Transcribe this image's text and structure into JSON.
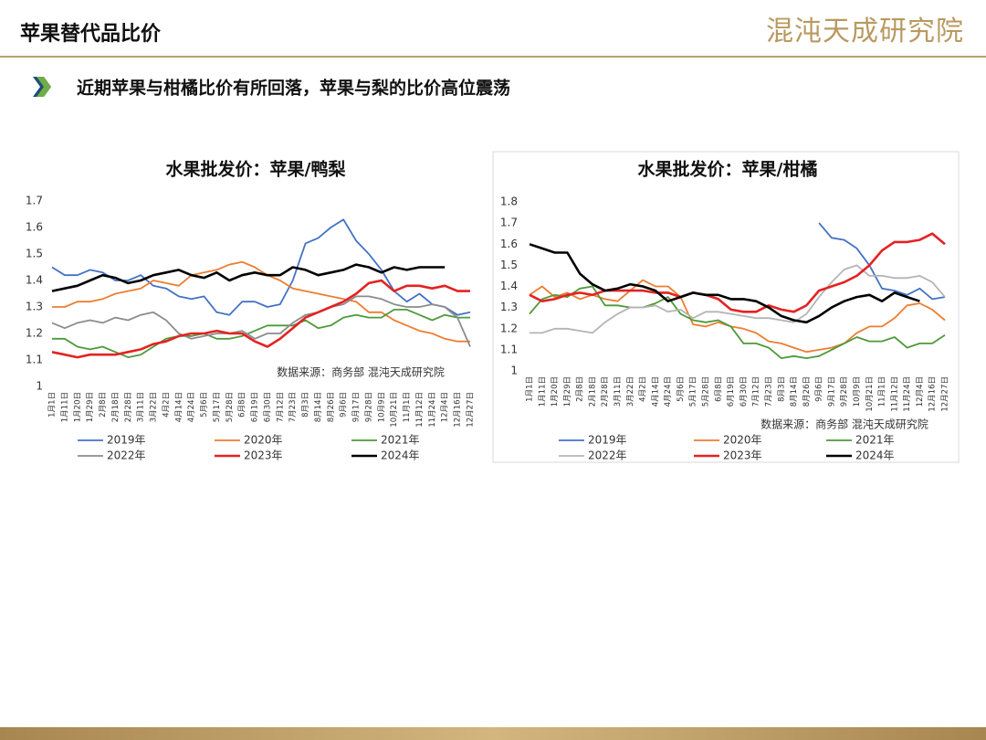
{
  "header": {
    "title": "苹果替代品比价",
    "logo": "混沌天成研究院",
    "subtitle": "近期苹果与柑橘比价有所回落，苹果与梨的比价高位震荡"
  },
  "chart_data": [
    {
      "type": "line",
      "title": "水果批发价：苹果/鸭梨",
      "source": "数据来源：商务部  混沌天成研究院",
      "categories": [
        "1月1日",
        "1月11日",
        "1月20日",
        "1月29日",
        "2月8日",
        "2月18日",
        "2月28日",
        "3月11日",
        "3月22日",
        "4月2日",
        "4月14日",
        "4月24日",
        "5月6日",
        "5月17日",
        "5月28日",
        "6月8日",
        "6月19日",
        "6月30日",
        "7月12日",
        "7月23日",
        "8月3日",
        "8月14日",
        "8月26日",
        "9月6日",
        "9月17日",
        "9月28日",
        "10月9日",
        "10月21日",
        "11月1日",
        "11月12日",
        "11月24日",
        "12月4日",
        "12月16日",
        "12月27日"
      ],
      "ylim": [
        1,
        1.7
      ],
      "yticks": [
        1,
        1.1,
        1.2,
        1.3,
        1.4,
        1.5,
        1.6,
        1.7
      ],
      "series": [
        {
          "name": "2019年",
          "color": "#4472c4",
          "values": [
            1.45,
            1.42,
            1.42,
            1.44,
            1.43,
            1.4,
            1.4,
            1.42,
            1.38,
            1.37,
            1.34,
            1.33,
            1.34,
            1.28,
            1.27,
            1.32,
            1.32,
            1.3,
            1.31,
            1.4,
            1.54,
            1.56,
            1.6,
            1.63,
            1.55,
            1.5,
            1.44,
            1.36,
            1.32,
            1.35,
            1.31,
            1.3,
            1.27,
            1.28
          ]
        },
        {
          "name": "2020年",
          "color": "#ed7d31",
          "values": [
            1.3,
            1.3,
            1.32,
            1.32,
            1.33,
            1.35,
            1.36,
            1.37,
            1.4,
            1.39,
            1.38,
            1.42,
            1.43,
            1.44,
            1.46,
            1.47,
            1.45,
            1.42,
            1.4,
            1.37,
            1.36,
            1.35,
            1.34,
            1.33,
            1.32,
            1.28,
            1.28,
            1.25,
            1.23,
            1.21,
            1.2,
            1.18,
            1.17,
            1.17
          ]
        },
        {
          "name": "2021年",
          "color": "#4e9a3a",
          "values": [
            1.18,
            1.18,
            1.15,
            1.14,
            1.15,
            1.13,
            1.11,
            1.12,
            1.15,
            1.18,
            1.19,
            1.19,
            1.2,
            1.18,
            1.18,
            1.19,
            1.21,
            1.23,
            1.23,
            1.23,
            1.25,
            1.22,
            1.23,
            1.26,
            1.27,
            1.26,
            1.26,
            1.29,
            1.29,
            1.27,
            1.25,
            1.27,
            1.26,
            1.26
          ]
        },
        {
          "name": "2022年",
          "color": "#8c8c8c",
          "values": [
            1.24,
            1.22,
            1.24,
            1.25,
            1.24,
            1.26,
            1.25,
            1.27,
            1.28,
            1.25,
            1.2,
            1.18,
            1.19,
            1.2,
            1.2,
            1.21,
            1.18,
            1.2,
            1.2,
            1.24,
            1.27,
            1.28,
            1.3,
            1.31,
            1.34,
            1.34,
            1.33,
            1.31,
            1.3,
            1.3,
            1.31,
            1.3,
            1.26,
            1.15
          ]
        },
        {
          "name": "2023年",
          "color": "#e42222",
          "values": [
            1.13,
            1.12,
            1.11,
            1.12,
            1.12,
            1.12,
            1.13,
            1.14,
            1.16,
            1.17,
            1.19,
            1.2,
            1.2,
            1.21,
            1.2,
            1.2,
            1.17,
            1.15,
            1.18,
            1.22,
            1.26,
            1.28,
            1.3,
            1.32,
            1.35,
            1.39,
            1.4,
            1.36,
            1.38,
            1.38,
            1.37,
            1.38,
            1.36,
            1.36
          ]
        },
        {
          "name": "2024年",
          "color": "#000000",
          "values": [
            1.36,
            1.37,
            1.38,
            1.4,
            1.42,
            1.41,
            1.39,
            1.4,
            1.42,
            1.43,
            1.44,
            1.42,
            1.41,
            1.43,
            1.4,
            1.42,
            1.43,
            1.42,
            1.42,
            1.45,
            1.44,
            1.42,
            1.43,
            1.44,
            1.46,
            1.45,
            1.43,
            1.45,
            1.44,
            1.45,
            1.45,
            1.45,
            null,
            null
          ]
        }
      ]
    },
    {
      "type": "line",
      "title": "水果批发价：苹果/柑橘",
      "source": "数据来源：商务部  混沌天成研究院",
      "categories": [
        "1月1日",
        "1月11日",
        "1月20日",
        "1月29日",
        "2月8日",
        "2月18日",
        "2月28日",
        "3月11日",
        "3月22日",
        "4月2日",
        "4月14日",
        "4月24日",
        "5月6日",
        "5月17日",
        "5月28日",
        "6月8日",
        "6月19日",
        "6月30日",
        "7月12日",
        "7月23日",
        "8月3日",
        "8月14日",
        "8月26日",
        "9月6日",
        "9月17日",
        "9月28日",
        "10月9日",
        "10月21日",
        "11月1日",
        "11月12日",
        "11月24日",
        "12月4日",
        "12月16日",
        "12月27日"
      ],
      "ylim": [
        1,
        1.8
      ],
      "yticks": [
        1,
        1.1,
        1.2,
        1.3,
        1.4,
        1.5,
        1.6,
        1.7,
        1.8
      ],
      "series": [
        {
          "name": "2019年",
          "color": "#4472c4",
          "values": [
            null,
            null,
            null,
            null,
            null,
            null,
            null,
            null,
            null,
            null,
            null,
            null,
            null,
            null,
            null,
            null,
            null,
            null,
            null,
            null,
            null,
            null,
            null,
            1.7,
            1.63,
            1.62,
            1.58,
            1.5,
            1.39,
            1.38,
            1.36,
            1.39,
            1.34,
            1.35
          ]
        },
        {
          "name": "2020年",
          "color": "#ed7d31",
          "values": [
            1.36,
            1.4,
            1.35,
            1.37,
            1.34,
            1.36,
            1.34,
            1.33,
            1.38,
            1.43,
            1.4,
            1.4,
            1.35,
            1.22,
            1.21,
            1.23,
            1.21,
            1.2,
            1.18,
            1.14,
            1.13,
            1.11,
            1.09,
            1.1,
            1.11,
            1.13,
            1.18,
            1.21,
            1.21,
            1.25,
            1.31,
            1.32,
            1.29,
            1.24
          ]
        },
        {
          "name": "2021年",
          "color": "#4e9a3a",
          "values": [
            1.27,
            1.34,
            1.36,
            1.35,
            1.39,
            1.4,
            1.31,
            1.31,
            1.3,
            1.3,
            1.32,
            1.35,
            1.27,
            1.24,
            1.23,
            1.24,
            1.21,
            1.13,
            1.13,
            1.11,
            1.06,
            1.07,
            1.06,
            1.07,
            1.1,
            1.13,
            1.16,
            1.14,
            1.14,
            1.16,
            1.11,
            1.13,
            1.13,
            1.17
          ]
        },
        {
          "name": "2022年",
          "color": "#b4b4b4",
          "values": [
            1.18,
            1.18,
            1.2,
            1.2,
            1.19,
            1.18,
            1.23,
            1.27,
            1.3,
            1.3,
            1.31,
            1.28,
            1.29,
            1.25,
            1.28,
            1.28,
            1.27,
            1.26,
            1.25,
            1.25,
            1.24,
            1.23,
            1.27,
            1.35,
            1.42,
            1.48,
            1.5,
            1.45,
            1.45,
            1.44,
            1.44,
            1.45,
            1.42,
            1.35
          ]
        },
        {
          "name": "2023年",
          "color": "#e42222",
          "values": [
            1.36,
            1.33,
            1.34,
            1.36,
            1.37,
            1.36,
            1.38,
            1.38,
            1.38,
            1.38,
            1.37,
            1.37,
            1.35,
            1.37,
            1.36,
            1.34,
            1.29,
            1.28,
            1.28,
            1.31,
            1.29,
            1.28,
            1.31,
            1.38,
            1.4,
            1.42,
            1.45,
            1.5,
            1.57,
            1.61,
            1.61,
            1.62,
            1.65,
            1.6
          ]
        },
        {
          "name": "2024年",
          "color": "#000000",
          "values": [
            1.6,
            1.58,
            1.56,
            1.56,
            1.46,
            1.41,
            1.38,
            1.39,
            1.41,
            1.4,
            1.38,
            1.33,
            1.35,
            1.37,
            1.36,
            1.36,
            1.34,
            1.34,
            1.33,
            1.3,
            1.26,
            1.24,
            1.23,
            1.26,
            1.3,
            1.33,
            1.35,
            1.36,
            1.33,
            1.37,
            1.35,
            1.33,
            null,
            null
          ]
        }
      ]
    }
  ]
}
